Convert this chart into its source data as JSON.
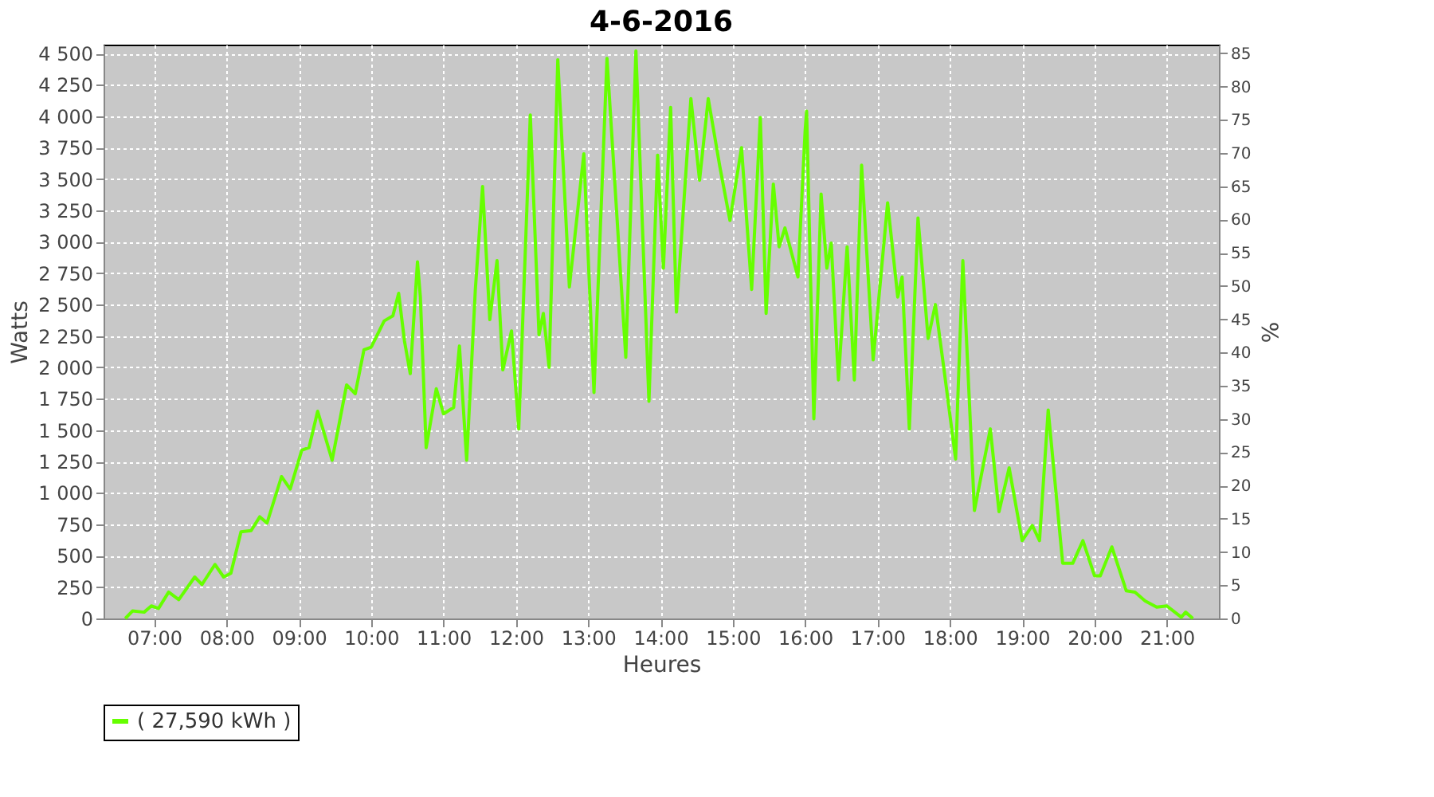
{
  "chart_data": {
    "type": "line",
    "title": "4-6-2016",
    "xlabel": "Heures",
    "ylabel": "Watts",
    "y2label": "%",
    "xlim": [
      6.3,
      21.72
    ],
    "xticks": [
      {
        "value": 7,
        "label": "07:00"
      },
      {
        "value": 8,
        "label": "08:00"
      },
      {
        "value": 9,
        "label": "09:00"
      },
      {
        "value": 10,
        "label": "10:00"
      },
      {
        "value": 11,
        "label": "11:00"
      },
      {
        "value": 12,
        "label": "12:00"
      },
      {
        "value": 13,
        "label": "13:00"
      },
      {
        "value": 14,
        "label": "14:00"
      },
      {
        "value": 15,
        "label": "15:00"
      },
      {
        "value": 16,
        "label": "16:00"
      },
      {
        "value": 17,
        "label": "17:00"
      },
      {
        "value": 18,
        "label": "18:00"
      },
      {
        "value": 19,
        "label": "19:00"
      },
      {
        "value": 20,
        "label": "20:00"
      },
      {
        "value": 21,
        "label": "21:00"
      }
    ],
    "ylim": [
      0,
      4570
    ],
    "yticks": [
      0,
      250,
      500,
      750,
      {
        "value": 1000,
        "label": "1 000"
      },
      {
        "value": 1250,
        "label": "1 250"
      },
      {
        "value": 1500,
        "label": "1 500"
      },
      {
        "value": 1750,
        "label": "1 750"
      },
      {
        "value": 2000,
        "label": "2 000"
      },
      {
        "value": 2250,
        "label": "2 250"
      },
      {
        "value": 2500,
        "label": "2 500"
      },
      {
        "value": 2750,
        "label": "2 750"
      },
      {
        "value": 3000,
        "label": "3 000"
      },
      {
        "value": 3250,
        "label": "3 250"
      },
      {
        "value": 3500,
        "label": "3 500"
      },
      {
        "value": 3750,
        "label": "3 750"
      },
      {
        "value": 4000,
        "label": "4 000"
      },
      {
        "value": 4250,
        "label": "4 250"
      },
      {
        "value": 4500,
        "label": "4 500"
      }
    ],
    "y2lim": [
      0,
      86.3
    ],
    "y2ticks": [
      0,
      5,
      10,
      15,
      20,
      25,
      30,
      35,
      40,
      45,
      50,
      55,
      60,
      65,
      70,
      75,
      80,
      85
    ],
    "grid": true,
    "legend": "bottom",
    "marker": "none",
    "line_style": "solid",
    "series": [
      {
        "name": "( 27,590 kWh )",
        "color": "#66ff00",
        "x": [
          6.6,
          6.7,
          6.86,
          6.96,
          7.06,
          7.2,
          7.34,
          7.56,
          7.66,
          7.84,
          7.96,
          8.06,
          8.2,
          8.34,
          8.46,
          8.56,
          8.76,
          8.88,
          9.04,
          9.14,
          9.26,
          9.46,
          9.66,
          9.78,
          9.9,
          10.0,
          10.18,
          10.3,
          10.38,
          10.46,
          10.54,
          10.64,
          10.68,
          10.76,
          10.9,
          11.0,
          11.14,
          11.22,
          11.32,
          11.44,
          11.54,
          11.64,
          11.74,
          11.82,
          11.94,
          12.04,
          12.2,
          12.32,
          12.38,
          12.46,
          12.58,
          12.74,
          12.94,
          13.08,
          13.26,
          13.52,
          13.66,
          13.84,
          13.96,
          14.04,
          14.14,
          14.22,
          14.42,
          14.54,
          14.66,
          14.82,
          14.96,
          15.12,
          15.26,
          15.38,
          15.46,
          15.56,
          15.64,
          15.72,
          15.9,
          16.0,
          16.02,
          16.12,
          16.22,
          16.3,
          16.36,
          16.46,
          16.58,
          16.68,
          16.78,
          16.94,
          17.14,
          17.28,
          17.34,
          17.44,
          17.56,
          17.7,
          17.8,
          17.92,
          18.08,
          18.18,
          18.34,
          18.56,
          18.68,
          18.82,
          19.0,
          19.14,
          19.24,
          19.36,
          19.56,
          19.7,
          19.84,
          20.0,
          20.08,
          20.24,
          20.44,
          20.56,
          20.7,
          20.86,
          21.0,
          21.2,
          21.26,
          21.36
        ],
        "values": [
          0,
          60,
          50,
          100,
          80,
          210,
          150,
          330,
          270,
          430,
          330,
          360,
          690,
          700,
          810,
          760,
          1130,
          1030,
          1340,
          1360,
          1650,
          1260,
          1860,
          1790,
          2140,
          2160,
          2370,
          2410,
          2590,
          2210,
          1950,
          2840,
          2560,
          1360,
          1830,
          1630,
          1680,
          2170,
          1260,
          2620,
          3440,
          2380,
          2850,
          1980,
          2290,
          1510,
          4010,
          2260,
          2430,
          2000,
          4450,
          2640,
          3700,
          1800,
          4460,
          2080,
          4520,
          1730,
          3690,
          2790,
          4070,
          2440,
          4140,
          3490,
          4140,
          3600,
          3170,
          3750,
          2620,
          3990,
          2430,
          3460,
          2960,
          3110,
          2720,
          3890,
          4040,
          1590,
          3380,
          2790,
          2990,
          1900,
          2960,
          1900,
          3610,
          2060,
          3310,
          2560,
          2720,
          1510,
          3190,
          2230,
          2500,
          1980,
          1270,
          2850,
          860,
          1510,
          850,
          1200,
          620,
          740,
          620,
          1660,
          440,
          440,
          620,
          340,
          340,
          570,
          220,
          210,
          140,
          90,
          100,
          10,
          50,
          0
        ]
      }
    ]
  }
}
